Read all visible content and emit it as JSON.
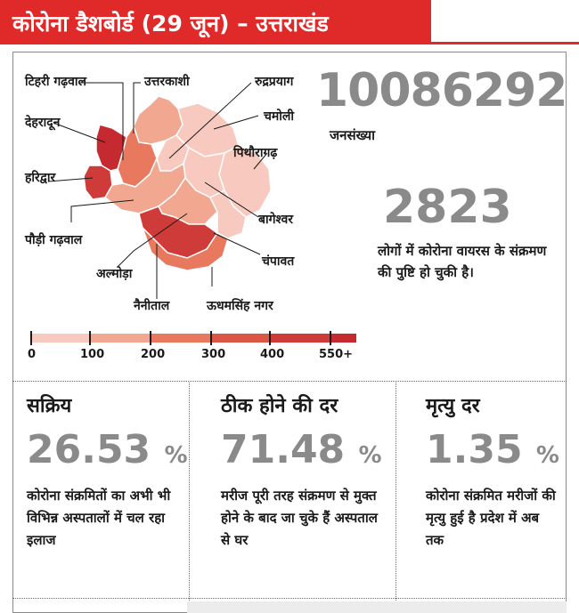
{
  "header": {
    "title": "कोरोना डैशबोर्ड (29 जून) – उत्तराखंड"
  },
  "map": {
    "districts": [
      {
        "name": "टिहरी गढ़वाल",
        "cases": 250
      },
      {
        "name": "उत्तरकाशी",
        "cases": 100
      },
      {
        "name": "रुद्रप्रयाग",
        "cases": 50
      },
      {
        "name": "चमोली",
        "cases": 50
      },
      {
        "name": "देहरादून",
        "cases": 550
      },
      {
        "name": "पिथौरागढ़",
        "cases": 50
      },
      {
        "name": "हरिद्वार",
        "cases": 400
      },
      {
        "name": "बागेश्वर",
        "cases": 50
      },
      {
        "name": "पौड़ी गढ़वाल",
        "cases": 150
      },
      {
        "name": "चंपावत",
        "cases": 50
      },
      {
        "name": "अल्मोड़ा",
        "cases": 150
      },
      {
        "name": "नैनीताल",
        "cases": 400
      },
      {
        "name": "ऊधमसिंह नगर",
        "cases": 250
      }
    ]
  },
  "legend": {
    "ticks": [
      "0",
      "100",
      "200",
      "300",
      "400",
      "550+"
    ],
    "colors": [
      "#f8c9bf",
      "#f2a890",
      "#e8785e",
      "#dc5646",
      "#cf3b38",
      "#c42a30"
    ]
  },
  "population": {
    "value": "10086292",
    "label": "जनसंख्या"
  },
  "cases": {
    "value": "2823",
    "description": "लोगों में कोरोना वायरस के संक्रमण की पुष्टि हो चुकी है।"
  },
  "stats": [
    {
      "title": "सक्रिय",
      "value": "26.53",
      "unit": "%",
      "description": "कोरोना संक्रमितों का अभी भी विभिन्न अस्पतालों में चल रहा इलाज"
    },
    {
      "title": "ठीक होने की दर",
      "value": "71.48",
      "unit": "%",
      "description": "मरीज पूरी तरह संक्रमण से मुक्त होने के बाद जा चुके हैं अस्पताल से घर"
    },
    {
      "title": "मृत्यु दर",
      "value": "1.35",
      "unit": "%",
      "description": "कोरोना संक्रमित मरीजों की मृत्यु हुई है प्रदेश में अब तक"
    }
  ]
}
